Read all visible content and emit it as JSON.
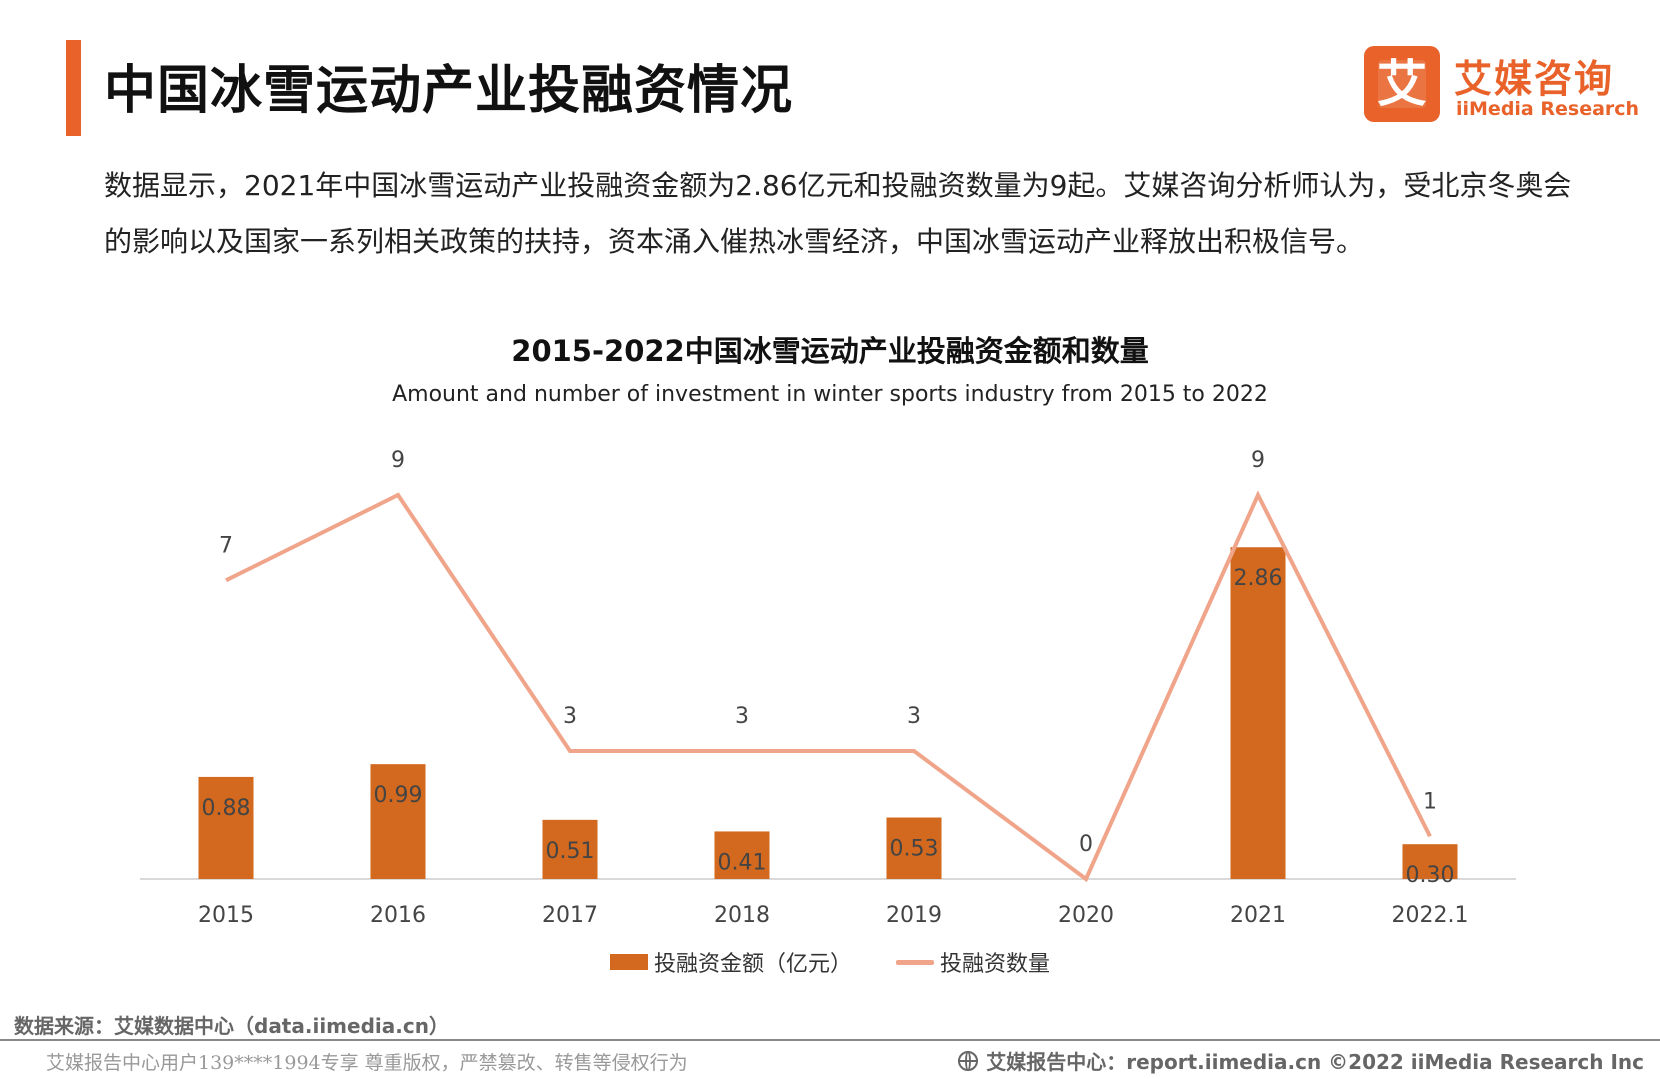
{
  "header": {
    "title": "中国冰雪运动产业投融资情况",
    "accent_color": "#e8622a"
  },
  "logo": {
    "glyph": "艾",
    "name_cn": "艾媒咨询",
    "name_en": "iiMedia Research"
  },
  "description": "数据显示，2021年中国冰雪运动产业投融资金额为2.86亿元和投融资数量为9起。艾媒咨询分析师认为，受北京冬奥会的影响以及国家一系列相关政策的扶持，资本涌入催热冰雪经济，中国冰雪运动产业释放出积极信号。",
  "chart_data": {
    "type": "bar",
    "title": "2015-2022中国冰雪运动产业投融资金额和数量",
    "subtitle": "Amount and number of investment in winter sports industry from 2015 to 2022",
    "categories": [
      "2015",
      "2016",
      "2017",
      "2018",
      "2019",
      "2020",
      "2021",
      "2022.1"
    ],
    "series": [
      {
        "name": "投融资金额（亿元）",
        "type": "bar",
        "color": "#d2691e",
        "values": [
          0.88,
          0.99,
          0.51,
          0.41,
          0.53,
          0,
          2.86,
          0.3
        ],
        "labels": [
          "0.88",
          "0.99",
          "0.51",
          "0.41",
          "0.53",
          "",
          "2.86",
          "0.30"
        ]
      },
      {
        "name": "投融资数量",
        "type": "line",
        "color": "#f0a58a",
        "values": [
          7,
          9,
          3,
          3,
          3,
          0,
          9,
          1
        ],
        "labels": [
          "7",
          "9",
          "3",
          "3",
          "3",
          "0",
          "9",
          "1"
        ]
      }
    ],
    "bar_axis_max": 3.0,
    "line_axis_max": 9,
    "grid": false,
    "legend_position": "bottom"
  },
  "source": "数据来源：艾媒数据中心（data.iimedia.cn）",
  "footer": {
    "left": "艾媒报告中心用户139****1994专享 尊重版权，严禁篡改、转售等侵权行为",
    "right": "艾媒报告中心：report.iimedia.cn  ©2022  iiMedia Research  Inc"
  }
}
